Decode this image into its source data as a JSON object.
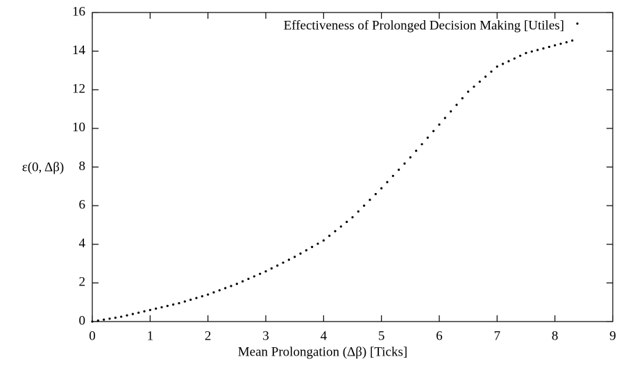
{
  "chart_data": {
    "type": "scatter",
    "xlabel": "Mean Prolongation (Δβ) [Ticks]",
    "ylabel": "ε(0, Δβ)",
    "legend": "top right",
    "series": [
      {
        "name": "Effectiveness of Prolonged Decision Making [Utiles]",
        "color": "#000000",
        "x": [
          0.0,
          0.1,
          0.2,
          0.3,
          0.4,
          0.5,
          0.6,
          0.7,
          0.8,
          0.9,
          1.0,
          1.1,
          1.2,
          1.3,
          1.4,
          1.5,
          1.6,
          1.7,
          1.8,
          1.9,
          2.0,
          2.1,
          2.2,
          2.3,
          2.4,
          2.5,
          2.6,
          2.7,
          2.8,
          2.9,
          3.0,
          3.1,
          3.2,
          3.3,
          3.4,
          3.5,
          3.6,
          3.7,
          3.8,
          3.9,
          4.0,
          4.1,
          4.2,
          4.3,
          4.4,
          4.5,
          4.6,
          4.7,
          4.8,
          4.9,
          5.0,
          5.1,
          5.2,
          5.3,
          5.4,
          5.5,
          5.6,
          5.7,
          5.8,
          5.9,
          6.0,
          6.1,
          6.2,
          6.3,
          6.4,
          6.5,
          6.6,
          6.7,
          6.8,
          6.9,
          7.0,
          7.1,
          7.2,
          7.3,
          7.4,
          7.5,
          7.6,
          7.7,
          7.8,
          7.9,
          8.0,
          8.1,
          8.2,
          8.3
        ],
        "values": [
          0,
          0.05,
          0.1,
          0.15,
          0.2,
          0.25,
          0.32,
          0.39,
          0.46,
          0.53,
          0.6,
          0.67,
          0.74,
          0.81,
          0.88,
          0.95,
          1.04,
          1.13,
          1.22,
          1.31,
          1.4,
          1.51,
          1.62,
          1.73,
          1.84,
          1.95,
          2.08,
          2.21,
          2.34,
          2.47,
          2.6,
          2.75,
          2.9,
          3.05,
          3.2,
          3.35,
          3.52,
          3.69,
          3.86,
          4.03,
          4.2,
          4.44,
          4.68,
          4.92,
          5.16,
          5.4,
          5.7,
          6.0,
          6.3,
          6.6,
          6.9,
          7.22,
          7.54,
          7.86,
          8.18,
          8.5,
          8.84,
          9.18,
          9.52,
          9.86,
          10.2,
          10.54,
          10.88,
          11.22,
          11.56,
          11.9,
          12.16,
          12.42,
          12.68,
          12.94,
          13.2,
          13.34,
          13.48,
          13.62,
          13.76,
          13.9,
          13.98,
          14.06,
          14.14,
          14.22,
          14.3,
          14.38,
          14.46,
          14.55
        ]
      }
    ],
    "xlim": [
      0,
      9
    ],
    "xticks": [
      0,
      1,
      2,
      3,
      4,
      5,
      6,
      7,
      8,
      9
    ],
    "ylim": [
      0,
      16
    ],
    "yticks": [
      0,
      2,
      4,
      6,
      8,
      10,
      12,
      14,
      16
    ]
  }
}
